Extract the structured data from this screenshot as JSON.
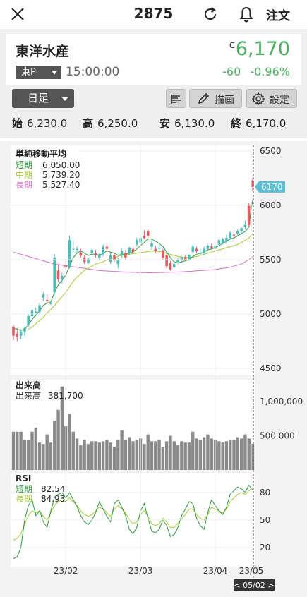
{
  "header": {
    "title": "2875",
    "order_label": "注文"
  },
  "quote": {
    "name": "東洋水産",
    "market": "東P",
    "time": "15:00:00",
    "price_flag": "C",
    "price": "6,170",
    "change": "-60",
    "change_pct": "-0.96%",
    "price_color": "#4caf60"
  },
  "controls": {
    "period": "日足",
    "draw_label": "描画",
    "settings_label": "設定"
  },
  "ohlc": {
    "open_label": "始",
    "open": "6,230.0",
    "high_label": "高",
    "high": "6,250.0",
    "low_label": "安",
    "low": "6,130.0",
    "close_label": "終",
    "close": "6,170.0"
  },
  "panels": {
    "ma_title": "単純移動平均",
    "ma_short_label": "短期",
    "ma_short_value": "6,050.00",
    "ma_mid_label": "中期",
    "ma_mid_value": "5,739.20",
    "ma_long_label": "長期",
    "ma_long_value": "5,527.40",
    "vol_title": "出来高",
    "vol_label": "出来高",
    "vol_value": "381,700",
    "rsi_title": "RSI",
    "rsi_short_label": "短期",
    "rsi_short_value": "82.54",
    "rsi_long_label": "長期",
    "rsi_long_value": "84.93",
    "cursor_date": "< 05/02 >",
    "last_price_tag": "6170"
  },
  "colors": {
    "up": "#4dbab8",
    "down": "#e45c62",
    "ma_short": "#2c9a3d",
    "ma_mid": "#a3c933",
    "ma_long": "#d66cc4",
    "volume": "#8a8a8a",
    "rsi_short": "#2c9a3d",
    "rsi_long": "#a3c933",
    "tag": "#5cbfd2"
  },
  "chart_data": [
    {
      "type": "candlestick",
      "title": "単純移動平均",
      "yticks": [
        4500,
        5000,
        5500,
        6000,
        6500
      ],
      "ylim": [
        4500,
        6500
      ],
      "xticks": [
        "23/02",
        "23/03",
        "23/04",
        "23/05"
      ],
      "last_price": 6170,
      "candles": [
        [
          4880,
          4900,
          4760,
          4800
        ],
        [
          4820,
          4870,
          4750,
          4790
        ],
        [
          4800,
          4860,
          4770,
          4840
        ],
        [
          4840,
          4880,
          4800,
          4870
        ],
        [
          4900,
          5000,
          4880,
          4980
        ],
        [
          4980,
          5050,
          4960,
          5030
        ],
        [
          5010,
          5060,
          4980,
          5020
        ],
        [
          5020,
          5100,
          5000,
          5080
        ],
        [
          5150,
          5200,
          5120,
          5180
        ],
        [
          5130,
          5180,
          5100,
          5120
        ],
        [
          5100,
          5120,
          5080,
          5100
        ],
        [
          5200,
          5550,
          5180,
          5520
        ],
        [
          5400,
          5450,
          5300,
          5320
        ],
        [
          5320,
          5380,
          5280,
          5350
        ],
        [
          5450,
          5500,
          5400,
          5430
        ],
        [
          5430,
          5720,
          5420,
          5680
        ],
        [
          5600,
          5680,
          5560,
          5600
        ],
        [
          5590,
          5620,
          5560,
          5600
        ],
        [
          5560,
          5600,
          5520,
          5540
        ],
        [
          5520,
          5540,
          5460,
          5480
        ],
        [
          5470,
          5520,
          5460,
          5510
        ],
        [
          5560,
          5600,
          5540,
          5590
        ],
        [
          5560,
          5590,
          5520,
          5540
        ],
        [
          5520,
          5560,
          5500,
          5550
        ],
        [
          5550,
          5640,
          5530,
          5620
        ],
        [
          5620,
          5640,
          5590,
          5600
        ],
        [
          5480,
          5560,
          5460,
          5540
        ],
        [
          5540,
          5560,
          5480,
          5500
        ],
        [
          5460,
          5520,
          5420,
          5500
        ],
        [
          5540,
          5600,
          5520,
          5580
        ],
        [
          5560,
          5590,
          5500,
          5520
        ],
        [
          5560,
          5620,
          5540,
          5610
        ],
        [
          5600,
          5620,
          5560,
          5570
        ],
        [
          5640,
          5700,
          5620,
          5680
        ],
        [
          5660,
          5720,
          5640,
          5700
        ],
        [
          5720,
          5770,
          5690,
          5700
        ],
        [
          5760,
          5780,
          5700,
          5720
        ],
        [
          5620,
          5680,
          5590,
          5650
        ],
        [
          5600,
          5630,
          5560,
          5580
        ],
        [
          5600,
          5640,
          5580,
          5610
        ],
        [
          5580,
          5600,
          5500,
          5520
        ],
        [
          5540,
          5560,
          5420,
          5440
        ],
        [
          5470,
          5490,
          5400,
          5410
        ],
        [
          5430,
          5470,
          5420,
          5460
        ],
        [
          5480,
          5520,
          5460,
          5500
        ],
        [
          5500,
          5530,
          5480,
          5520
        ],
        [
          5520,
          5540,
          5490,
          5500
        ],
        [
          5500,
          5550,
          5490,
          5540
        ],
        [
          5570,
          5640,
          5560,
          5620
        ],
        [
          5600,
          5620,
          5560,
          5580
        ],
        [
          5560,
          5600,
          5540,
          5560
        ],
        [
          5560,
          5620,
          5540,
          5600
        ],
        [
          5600,
          5640,
          5580,
          5630
        ],
        [
          5620,
          5650,
          5590,
          5610
        ],
        [
          5600,
          5640,
          5590,
          5630
        ],
        [
          5640,
          5690,
          5620,
          5680
        ],
        [
          5650,
          5700,
          5640,
          5690
        ],
        [
          5670,
          5730,
          5650,
          5700
        ],
        [
          5700,
          5760,
          5690,
          5750
        ],
        [
          5730,
          5770,
          5700,
          5720
        ],
        [
          5740,
          5780,
          5720,
          5760
        ],
        [
          5760,
          5800,
          5740,
          5790
        ],
        [
          5800,
          5860,
          5780,
          5820
        ],
        [
          6000,
          6020,
          5800,
          5820
        ],
        [
          6230,
          6250,
          6130,
          6170
        ]
      ],
      "ma_short": [
        4870,
        4860,
        4850,
        4860,
        4900,
        4950,
        4990,
        5030,
        5080,
        5100,
        5110,
        5200,
        5270,
        5310,
        5360,
        5440,
        5520,
        5560,
        5580,
        5560,
        5540,
        5550,
        5550,
        5540,
        5560,
        5580,
        5570,
        5560,
        5540,
        5550,
        5550,
        5560,
        5570,
        5600,
        5630,
        5660,
        5690,
        5690,
        5670,
        5650,
        5620,
        5570,
        5520,
        5480,
        5470,
        5480,
        5490,
        5500,
        5530,
        5550,
        5560,
        5570,
        5590,
        5600,
        5610,
        5630,
        5650,
        5670,
        5690,
        5700,
        5720,
        5740,
        5760,
        5800,
        6050
      ],
      "ma_mid": [
        null,
        null,
        null,
        null,
        4860,
        4880,
        4910,
        4940,
        4970,
        5010,
        5040,
        5080,
        5120,
        5160,
        5200,
        5250,
        5300,
        5340,
        5370,
        5400,
        5420,
        5440,
        5460,
        5470,
        5480,
        5500,
        5510,
        5520,
        5530,
        5540,
        5545,
        5550,
        5555,
        5560,
        5565,
        5570,
        5575,
        5580,
        5580,
        5575,
        5570,
        5560,
        5550,
        5540,
        5530,
        5525,
        5520,
        5520,
        5525,
        5530,
        5540,
        5550,
        5560,
        5570,
        5580,
        5590,
        5600,
        5610,
        5620,
        5630,
        5640,
        5660,
        5680,
        5700,
        5739.2
      ],
      "ma_long": [
        5570,
        5560,
        5550,
        5540,
        5530,
        5520,
        5510,
        5500,
        5490,
        5480,
        5470,
        5460,
        5455,
        5450,
        5445,
        5440,
        5435,
        5430,
        5425,
        5420,
        5415,
        5410,
        5405,
        5400,
        5398,
        5396,
        5394,
        5392,
        5390,
        5388,
        5386,
        5385,
        5384,
        5383,
        5382,
        5381,
        5380,
        5380,
        5381,
        5382,
        5383,
        5384,
        5385,
        5386,
        5387,
        5388,
        5390,
        5392,
        5395,
        5398,
        5400,
        5402,
        5404,
        5406,
        5410,
        5415,
        5420,
        5425,
        5430,
        5440,
        5450,
        5460,
        5480,
        5500,
        5527.4
      ]
    },
    {
      "type": "bar",
      "title": "出来高",
      "yticks": [
        500000,
        1000000
      ],
      "ylim": [
        0,
        1300000
      ],
      "values": [
        560000,
        560000,
        560000,
        440000,
        440000,
        560000,
        620000,
        400000,
        380000,
        520000,
        400000,
        720000,
        880000,
        1220000,
        640000,
        820000,
        560000,
        460000,
        360000,
        440000,
        380000,
        420000,
        420000,
        400000,
        420000,
        440000,
        400000,
        340000,
        440000,
        580000,
        440000,
        480000,
        420000,
        440000,
        460000,
        380000,
        520000,
        420000,
        420000,
        440000,
        340000,
        420000,
        500000,
        420000,
        360000,
        420000,
        400000,
        400000,
        560000,
        460000,
        440000,
        480000,
        520000,
        460000,
        440000,
        420000,
        400000,
        420000,
        440000,
        440000,
        480000,
        460000,
        520000,
        460000,
        381700
      ]
    },
    {
      "type": "line",
      "title": "RSI",
      "yticks": [
        20,
        50,
        80
      ],
      "ylim": [
        0,
        100
      ],
      "series": [
        {
          "name": "短期",
          "values": [
            8,
            10,
            20,
            50,
            66,
            72,
            55,
            60,
            48,
            42,
            60,
            75,
            78,
            80,
            74,
            80,
            72,
            65,
            55,
            48,
            45,
            50,
            58,
            70,
            62,
            54,
            48,
            68,
            72,
            64,
            55,
            40,
            35,
            42,
            60,
            68,
            52,
            38,
            36,
            40,
            50,
            44,
            32,
            34,
            42,
            55,
            62,
            70,
            68,
            52,
            44,
            40,
            58,
            72,
            66,
            60,
            56,
            64,
            78,
            82,
            86,
            84,
            80,
            88,
            82.54
          ]
        },
        {
          "name": "長期",
          "values": [
            28,
            30,
            35,
            45,
            55,
            60,
            58,
            60,
            54,
            50,
            58,
            66,
            70,
            72,
            70,
            74,
            70,
            66,
            60,
            56,
            54,
            56,
            60,
            64,
            62,
            58,
            54,
            62,
            66,
            62,
            58,
            50,
            46,
            48,
            56,
            60,
            54,
            46,
            44,
            46,
            52,
            48,
            42,
            42,
            46,
            52,
            56,
            62,
            62,
            56,
            52,
            50,
            56,
            64,
            62,
            60,
            58,
            62,
            70,
            74,
            78,
            80,
            78,
            82,
            84.93
          ]
        }
      ]
    }
  ]
}
